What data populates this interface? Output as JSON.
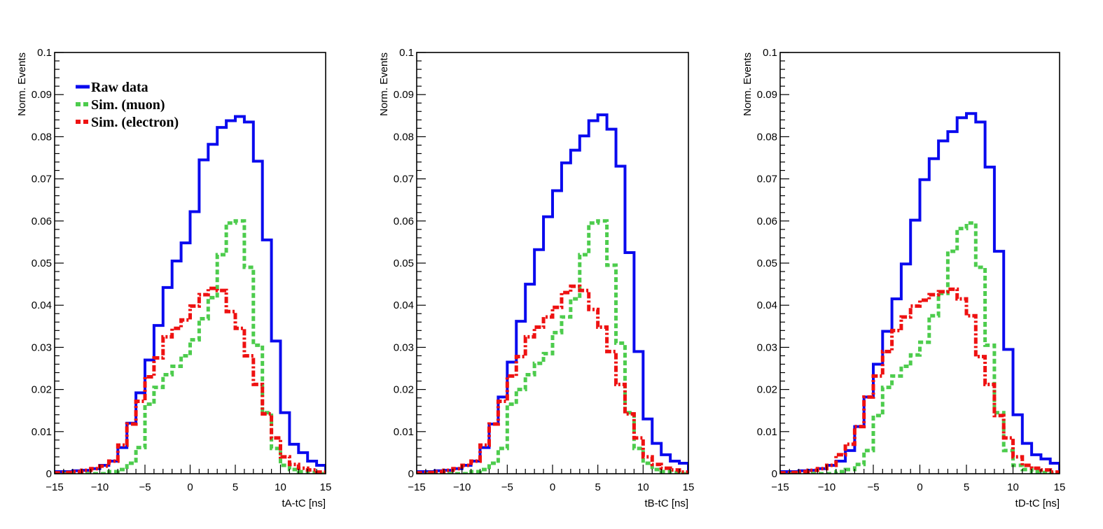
{
  "chart_data": [
    {
      "type": "line",
      "drawstyle": "step",
      "xlabel": "tA-tC [ns]",
      "ylabel": "Norm. Events",
      "xlim": [
        -15,
        15
      ],
      "ylim": [
        0,
        0.1
      ],
      "xticks": [
        -15,
        -10,
        -5,
        0,
        5,
        10,
        15
      ],
      "yticks": [
        0,
        0.01,
        0.02,
        0.03,
        0.04,
        0.05,
        0.06,
        0.07,
        0.08,
        0.09,
        0.1
      ],
      "grid": false,
      "legend_position": "top-left",
      "bin_edges": [
        -15,
        -14,
        -13,
        -12,
        -11,
        -10,
        -9,
        -8,
        -7,
        -6,
        -5,
        -4,
        -3,
        -2,
        -1,
        0,
        1,
        2,
        3,
        4,
        5,
        6,
        7,
        8,
        9,
        10,
        11,
        12,
        13,
        14,
        15
      ],
      "series": [
        {
          "name": "Raw data",
          "color": "#0a0aee",
          "style": "solid",
          "values": [
            0.0005,
            0.0005,
            0.0007,
            0.0008,
            0.0012,
            0.002,
            0.003,
            0.0062,
            0.012,
            0.0192,
            0.027,
            0.0352,
            0.0442,
            0.0505,
            0.0548,
            0.0622,
            0.0745,
            0.0782,
            0.0822,
            0.0838,
            0.0848,
            0.0835,
            0.0742,
            0.0555,
            0.0315,
            0.0145,
            0.007,
            0.005,
            0.003,
            0.002
          ]
        },
        {
          "name": "Sim. (muon)",
          "color": "#4dcc4d",
          "style": "dash",
          "values": [
            0,
            0,
            0,
            0,
            0,
            0,
            0.0005,
            0.001,
            0.0025,
            0.0062,
            0.0165,
            0.0205,
            0.0235,
            0.0255,
            0.028,
            0.0318,
            0.0368,
            0.0418,
            0.052,
            0.0595,
            0.06,
            0.049,
            0.0305,
            0.0145,
            0.006,
            0.002,
            0.001,
            0.0005,
            0.0003,
            0
          ]
        },
        {
          "name": "Sim. (electron)",
          "color": "#ee1111",
          "style": "dashdot",
          "values": [
            0.0002,
            0.0003,
            0.0005,
            0.0008,
            0.0012,
            0.0018,
            0.003,
            0.0068,
            0.0118,
            0.0172,
            0.023,
            0.0275,
            0.0325,
            0.0345,
            0.0365,
            0.0398,
            0.0425,
            0.044,
            0.0435,
            0.0385,
            0.0345,
            0.028,
            0.0212,
            0.0142,
            0.0085,
            0.004,
            0.0022,
            0.0013,
            0.0009,
            0.0004
          ]
        }
      ]
    },
    {
      "type": "line",
      "drawstyle": "step",
      "xlabel": "tB-tC [ns]",
      "ylabel": "Norm. Events",
      "xlim": [
        -15,
        15
      ],
      "ylim": [
        0,
        0.1
      ],
      "xticks": [
        -15,
        -10,
        -5,
        0,
        5,
        10,
        15
      ],
      "yticks": [
        0,
        0.01,
        0.02,
        0.03,
        0.04,
        0.05,
        0.06,
        0.07,
        0.08,
        0.09,
        0.1
      ],
      "grid": false,
      "bin_edges": [
        -15,
        -14,
        -13,
        -12,
        -11,
        -10,
        -9,
        -8,
        -7,
        -6,
        -5,
        -4,
        -3,
        -2,
        -1,
        0,
        1,
        2,
        3,
        4,
        5,
        6,
        7,
        8,
        9,
        10,
        11,
        12,
        13,
        14,
        15
      ],
      "series": [
        {
          "color": "#0a0aee",
          "style": "solid",
          "values": [
            0.0005,
            0.0005,
            0.0007,
            0.0008,
            0.0012,
            0.002,
            0.003,
            0.0062,
            0.0118,
            0.0182,
            0.0265,
            0.0362,
            0.045,
            0.0532,
            0.061,
            0.0672,
            0.0738,
            0.0768,
            0.0802,
            0.0838,
            0.0852,
            0.0818,
            0.073,
            0.0525,
            0.029,
            0.013,
            0.0072,
            0.0045,
            0.003,
            0.0025
          ]
        },
        {
          "color": "#4dcc4d",
          "style": "dash",
          "values": [
            0,
            0,
            0,
            0,
            0,
            0,
            0.0005,
            0.001,
            0.0025,
            0.006,
            0.0165,
            0.02,
            0.0235,
            0.0262,
            0.0285,
            0.0335,
            0.0372,
            0.0415,
            0.052,
            0.0595,
            0.06,
            0.0495,
            0.031,
            0.0145,
            0.006,
            0.0025,
            0.001,
            0.0005,
            0.0003,
            0
          ]
        },
        {
          "color": "#ee1111",
          "style": "dashdot",
          "values": [
            0.0002,
            0.0003,
            0.0005,
            0.0008,
            0.0012,
            0.002,
            0.003,
            0.0068,
            0.0118,
            0.0172,
            0.0232,
            0.0278,
            0.0325,
            0.0348,
            0.0372,
            0.0395,
            0.043,
            0.0445,
            0.0435,
            0.039,
            0.0348,
            0.029,
            0.0212,
            0.0142,
            0.0085,
            0.004,
            0.0022,
            0.0013,
            0.0009,
            0.0004
          ]
        }
      ]
    },
    {
      "type": "line",
      "drawstyle": "step",
      "xlabel": "tD-tC [ns]",
      "ylabel": "Norm. Events",
      "xlim": [
        -15,
        15
      ],
      "ylim": [
        0,
        0.1
      ],
      "xticks": [
        -15,
        -10,
        -5,
        0,
        5,
        10,
        15
      ],
      "yticks": [
        0,
        0.01,
        0.02,
        0.03,
        0.04,
        0.05,
        0.06,
        0.07,
        0.08,
        0.09,
        0.1
      ],
      "grid": false,
      "bin_edges": [
        -15,
        -14,
        -13,
        -12,
        -11,
        -10,
        -9,
        -8,
        -7,
        -6,
        -5,
        -4,
        -3,
        -2,
        -1,
        0,
        1,
        2,
        3,
        4,
        5,
        6,
        7,
        8,
        9,
        10,
        11,
        12,
        13,
        14,
        15
      ],
      "series": [
        {
          "color": "#0a0aee",
          "style": "solid",
          "values": [
            0.0005,
            0.0005,
            0.0007,
            0.0008,
            0.0012,
            0.002,
            0.003,
            0.0055,
            0.0112,
            0.0182,
            0.026,
            0.0338,
            0.0415,
            0.0498,
            0.0602,
            0.0698,
            0.0748,
            0.079,
            0.0812,
            0.0845,
            0.0855,
            0.0835,
            0.0728,
            0.0528,
            0.0295,
            0.014,
            0.0072,
            0.0045,
            0.0035,
            0.0025
          ]
        },
        {
          "color": "#4dcc4d",
          "style": "dash",
          "values": [
            0,
            0,
            0,
            0,
            0,
            0,
            0.0005,
            0.001,
            0.0022,
            0.0055,
            0.0138,
            0.0205,
            0.0232,
            0.0255,
            0.0282,
            0.0312,
            0.0375,
            0.0428,
            0.0528,
            0.0582,
            0.0595,
            0.049,
            0.0305,
            0.0145,
            0.0055,
            0.002,
            0.001,
            0.0005,
            0.0003,
            0
          ]
        },
        {
          "color": "#ee1111",
          "style": "dashdot",
          "values": [
            0.0002,
            0.0003,
            0.0005,
            0.0008,
            0.0012,
            0.002,
            0.0045,
            0.007,
            0.0112,
            0.0182,
            0.0232,
            0.029,
            0.034,
            0.0372,
            0.0398,
            0.0412,
            0.0425,
            0.0432,
            0.0438,
            0.0415,
            0.0375,
            0.0278,
            0.0212,
            0.0138,
            0.0085,
            0.004,
            0.002,
            0.0013,
            0.0009,
            0.0004
          ]
        }
      ]
    }
  ]
}
